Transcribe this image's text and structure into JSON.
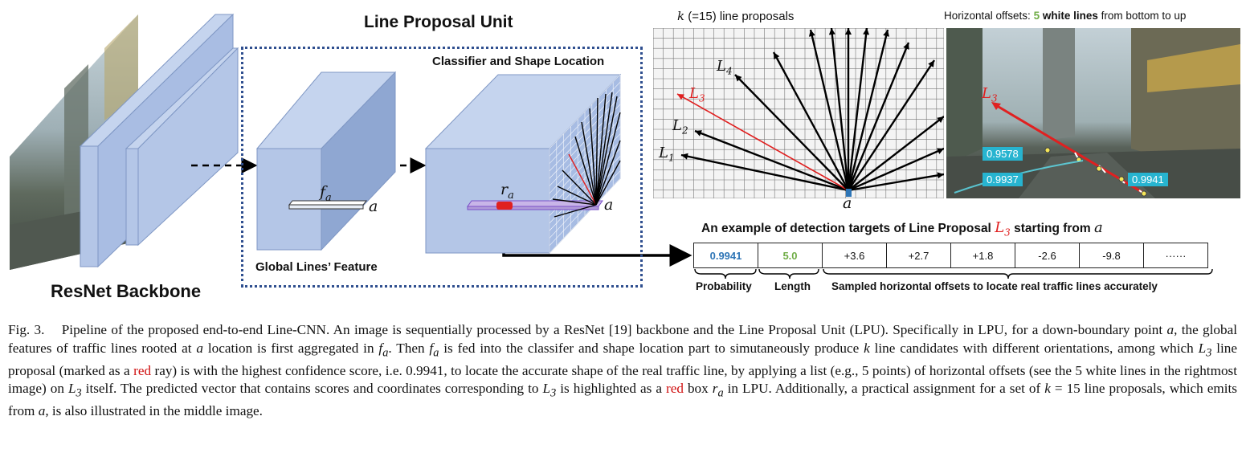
{
  "figure": {
    "backbone_label": "ResNet Backbone",
    "lpu_title": "Line Proposal Unit",
    "classifier_label": "Classifier and Shape Location",
    "global_feature_label": "Global Lines’ Feature",
    "fa_label": "f",
    "fa_sub": "a",
    "ra_label": "r",
    "ra_sub": "a",
    "anchor_label_1": "a",
    "anchor_label_2": "a",
    "grid_title_k": "k",
    "grid_title_rest": " (=15) line proposals",
    "grid_anchor_label": "a",
    "proposal_labels": [
      "L4",
      "L3",
      "L2",
      "L1"
    ],
    "photo_title_pre": "Horizontal offsets: ",
    "photo_title_num": "5",
    "photo_title_bold": " white lines",
    "photo_title_post": " from bottom to up",
    "photo_l3": "L3",
    "scores": [
      "0.9578",
      "0.9937",
      "0.9941"
    ],
    "example_title_pre": "An example of detection targets of Line Proposal ",
    "example_title_L": "L",
    "example_title_sub": "3",
    "example_title_post": "  starting from ",
    "example_title_a": "a",
    "table_values": [
      "0.9941",
      "5.0",
      "+3.6",
      "+2.7",
      "+1.8",
      "-2.6",
      "-9.8",
      "······"
    ],
    "bottom_labels": {
      "probability": "Probability",
      "length": "Length",
      "offsets": "Sampled horizontal offsets to locate real traffic lines accurately"
    },
    "colors": {
      "block_fill": "#b4c6e7",
      "block_dark": "#8fa7d2",
      "probability_blue": "#2e75b6",
      "length_green": "#70ad47",
      "red": "#e02020",
      "dashed_border": "#2f4f8f"
    }
  },
  "caption": {
    "fig_label": "Fig. 3.",
    "s1": "Pipeline of the proposed end-to-end Line-CNN. An image is sequentially processed by a ResNet [19] backbone and the Line Proposal Unit (LPU). Specifically in LPU, for a down-boundary point ",
    "a1": "a",
    "s2": ", the global features of traffic lines rooted at ",
    "a2": "a",
    "s3": " location is first aggregated in ",
    "fa1": "f",
    "fa1_sub": "a",
    "s4": ". Then ",
    "fa2": "f",
    "fa2_sub": "a",
    "s5": " is fed into the classifer and shape location part to simutaneously produce ",
    "k1": "k",
    "s6": " line candidates with different orientations, among which ",
    "L3a": "L",
    "L3a_sub": "3",
    "s7": " line proposal (marked as a ",
    "red1": "red",
    "s8": " ray) is with the highest confidence score, i.e. 0.9941, to locate the accurate shape of the real traffic line, by applying a list (e.g., 5 points) of horizontal offsets (see the 5 white lines in the rightmost image) on ",
    "L3b": "L",
    "L3b_sub": "3",
    "s9": " itself. The predicted vector that contains scores and coordinates corresponding to ",
    "L3c": "L",
    "L3c_sub": "3",
    "s10": " is highlighted as a ",
    "red2": "red",
    "s11": " box ",
    "ra": "r",
    "ra_sub": "a",
    "s12": " in LPU. Additionally, a practical assignment for a set of ",
    "k2": "k",
    "s13": " = 15 line proposals, which emits from ",
    "a3": "a",
    "s14": ", is also illustrated in the middle image."
  }
}
